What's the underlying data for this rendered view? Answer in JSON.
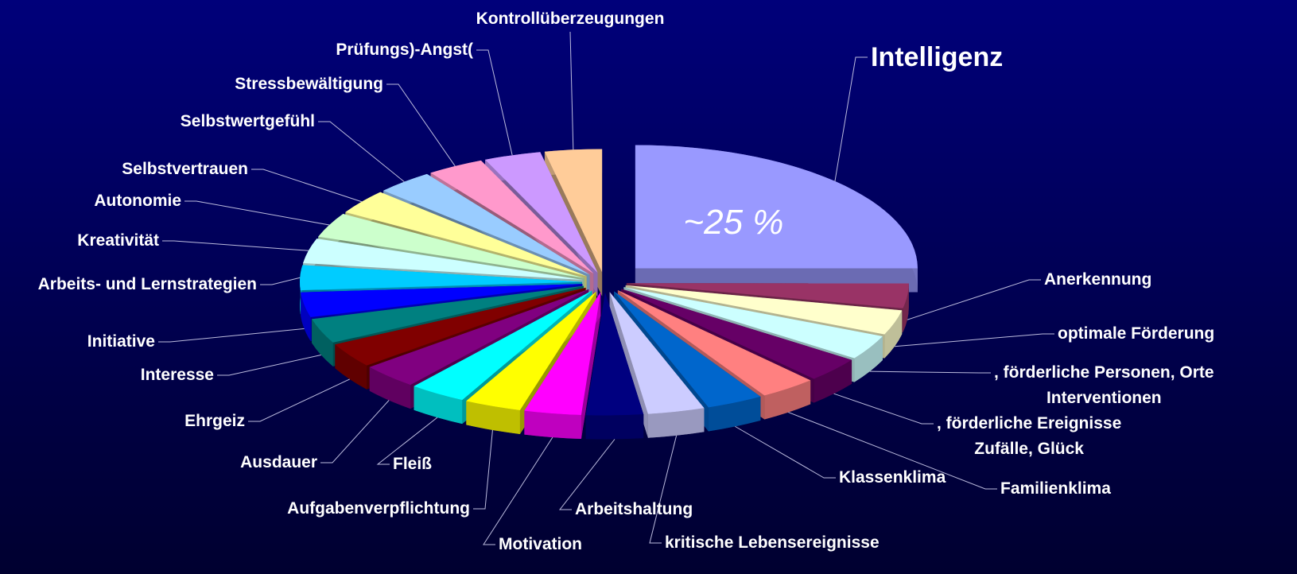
{
  "chart_data": {
    "type": "pie3d",
    "categories": [
      "Intelligenz",
      "Anerkennung",
      "optimale Förderung",
      ", förderliche Personen, Orte\nInterventionen",
      ", förderliche Ereignisse\nZufälle, Glück",
      "Familienklima",
      "Klassenklima",
      "kritische Lebensereignisse",
      "Arbeitshaltung",
      "Motivation",
      "Aufgabenverpflichtung",
      "Fleiß",
      "Ausdauer",
      "Ehrgeiz",
      "Interesse",
      "Initiative",
      "Arbeits- und Lernstrategien",
      "Kreativität",
      "Autonomie",
      "Selbstvertrauen",
      "Selbstwertgefühl",
      "Stressbewältigung",
      "Prüfungs)-Angst(",
      "Kontrollüberzeugungen"
    ],
    "values": [
      25,
      3.26,
      3.26,
      3.26,
      3.26,
      3.26,
      3.26,
      3.26,
      3.26,
      3.26,
      3.26,
      3.26,
      3.26,
      3.26,
      3.26,
      3.26,
      3.26,
      3.26,
      3.26,
      3.26,
      3.26,
      3.26,
      3.26,
      3.26
    ],
    "value_labels": [
      "~25 %",
      null,
      null,
      null,
      null,
      null,
      null,
      null,
      null,
      null,
      null,
      null,
      null,
      null,
      null,
      null,
      null,
      null,
      null,
      null,
      null,
      null,
      null,
      null
    ],
    "colors": [
      "#9999ff",
      "#993366",
      "#ffffcc",
      "#ccffff",
      "#660066",
      "#ff8080",
      "#0066cc",
      "#ccccff",
      "#000080",
      "#ff00ff",
      "#ffff00",
      "#00ffff",
      "#800080",
      "#800000",
      "#008080",
      "#0000ff",
      "#00ccff",
      "#ccffff",
      "#ccffcc",
      "#ffff99",
      "#99ccff",
      "#ff99cc",
      "#cc99ff",
      "#ffcc99"
    ]
  }
}
